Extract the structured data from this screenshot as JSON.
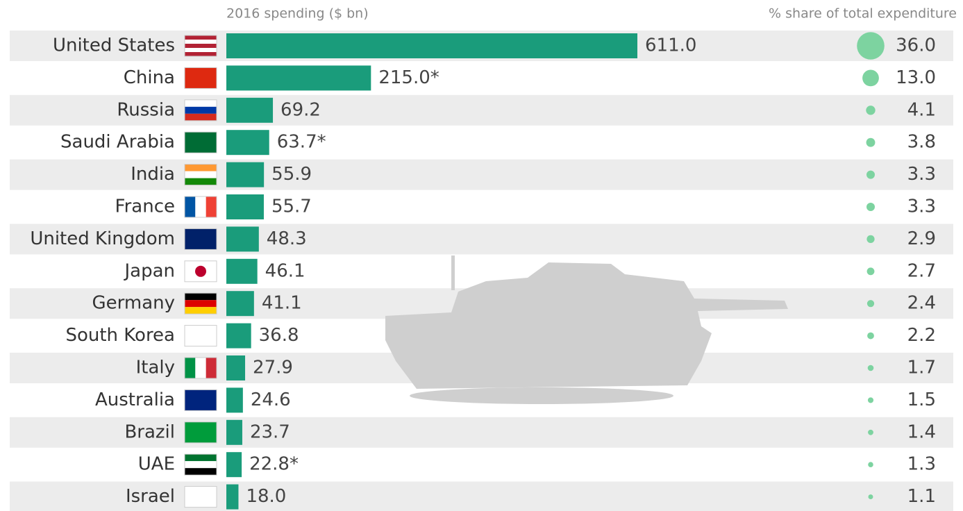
{
  "chart_data": {
    "type": "bar",
    "x_label": "2016 spending ($ bn)",
    "share_label": "% share of total expenditure",
    "categories": [
      "United States",
      "China",
      "Russia",
      "Saudi Arabia",
      "India",
      "France",
      "United Kingdom",
      "Japan",
      "Germany",
      "South Korea",
      "Italy",
      "Australia",
      "Brazil",
      "UAE",
      "Israel"
    ],
    "color": "#1a9c7b",
    "values": [
      611.0,
      215.0,
      69.2,
      63.7,
      55.9,
      55.7,
      48.3,
      46.1,
      41.1,
      36.8,
      27.9,
      24.6,
      23.7,
      22.8,
      18.0
    ],
    "value_labels": [
      "611.0",
      "215.0*",
      "69.2",
      "63.7*",
      "55.9",
      "55.7",
      "48.3",
      "46.1",
      "41.1",
      "36.8",
      "27.9",
      "24.6",
      "23.7",
      "22.8*",
      "18.0"
    ],
    "share_color": "#7dd3a0",
    "share_values": [
      36.0,
      13.0,
      4.1,
      3.8,
      3.3,
      3.3,
      2.9,
      2.7,
      2.4,
      2.2,
      1.7,
      1.5,
      1.4,
      1.3,
      1.1
    ],
    "share_value_labels": [
      "36.0",
      "13.0",
      "4.1",
      "3.8",
      "3.3",
      "3.3",
      "2.9",
      "2.7",
      "2.4",
      "2.2",
      "1.7",
      "1.5",
      "1.4",
      "1.3",
      "1.1"
    ]
  }
}
